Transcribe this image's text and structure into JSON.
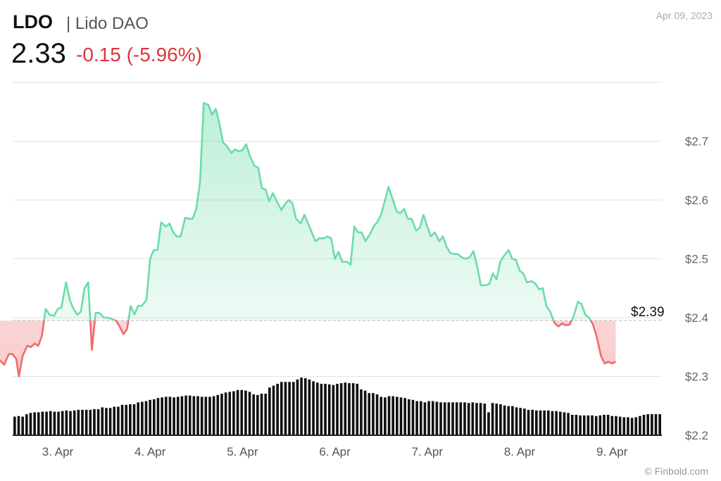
{
  "header": {
    "ticker": "LDO",
    "name": "| Lido DAO",
    "price": "2.33",
    "change": "-0.15 (-5.96%)",
    "date": "Apr 09, 2023"
  },
  "credit": "© Finbold.com",
  "colors": {
    "up": "#6ddba8",
    "down": "#ee6b6b",
    "volume": "#111111",
    "grid": "#e2e2e2"
  },
  "chart_data": {
    "type": "area",
    "title": "",
    "xlabel": "",
    "ylabel": "",
    "ylim": [
      2.2,
      2.8
    ],
    "yticks": [
      {
        "value": 2.2,
        "label": "$2.2"
      },
      {
        "value": 2.3,
        "label": "$2.3"
      },
      {
        "value": 2.4,
        "label": "$2.4"
      },
      {
        "value": 2.5,
        "label": "$2.5"
      },
      {
        "value": 2.6,
        "label": "$2.6"
      },
      {
        "value": 2.7,
        "label": "$2.7"
      }
    ],
    "xticks": [
      {
        "t": 1.0,
        "label": "3. Apr"
      },
      {
        "t": 2.0,
        "label": "4. Apr"
      },
      {
        "t": 3.0,
        "label": "5. Apr"
      },
      {
        "t": 4.0,
        "label": "6. Apr"
      },
      {
        "t": 5.0,
        "label": "7. Apr"
      },
      {
        "t": 6.0,
        "label": "8. Apr"
      },
      {
        "t": 7.0,
        "label": "9. Apr"
      }
    ],
    "baseline": {
      "value": 2.395,
      "label": "$2.39"
    },
    "series": [
      {
        "values": [
          [
            0.0,
            2.395
          ],
          [
            0.03,
            2.385
          ],
          [
            0.08,
            2.415
          ],
          [
            0.12,
            2.395
          ],
          [
            0.16,
            2.405
          ],
          [
            0.2,
            2.39
          ],
          [
            0.25,
            2.385
          ],
          [
            0.29,
            2.36
          ],
          [
            0.33,
            2.325
          ],
          [
            0.37,
            2.328
          ],
          [
            0.42,
            2.32
          ],
          [
            0.47,
            2.338
          ],
          [
            0.51,
            2.338
          ],
          [
            0.55,
            2.33
          ],
          [
            0.58,
            2.3
          ],
          [
            0.62,
            2.335
          ],
          [
            0.67,
            2.352
          ],
          [
            0.71,
            2.35
          ],
          [
            0.75,
            2.356
          ],
          [
            0.79,
            2.352
          ],
          [
            0.83,
            2.37
          ],
          [
            0.87,
            2.415
          ],
          [
            0.91,
            2.405
          ],
          [
            0.96,
            2.403
          ],
          [
            1.0,
            2.415
          ],
          [
            1.04,
            2.417
          ],
          [
            1.09,
            2.46
          ],
          [
            1.13,
            2.43
          ],
          [
            1.17,
            2.415
          ],
          [
            1.21,
            2.405
          ],
          [
            1.25,
            2.41
          ],
          [
            1.29,
            2.45
          ],
          [
            1.33,
            2.46
          ],
          [
            1.37,
            2.345
          ],
          [
            1.41,
            2.408
          ],
          [
            1.45,
            2.408
          ],
          [
            1.5,
            2.4
          ],
          [
            1.54,
            2.4
          ],
          [
            1.58,
            2.398
          ],
          [
            1.63,
            2.395
          ],
          [
            1.67,
            2.385
          ],
          [
            1.71,
            2.372
          ],
          [
            1.75,
            2.38
          ],
          [
            1.79,
            2.42
          ],
          [
            1.83,
            2.405
          ],
          [
            1.87,
            2.42
          ],
          [
            1.91,
            2.42
          ],
          [
            1.96,
            2.43
          ],
          [
            2.0,
            2.5
          ],
          [
            2.04,
            2.515
          ],
          [
            2.08,
            2.515
          ],
          [
            2.12,
            2.562
          ],
          [
            2.17,
            2.555
          ],
          [
            2.21,
            2.56
          ],
          [
            2.25,
            2.545
          ],
          [
            2.29,
            2.538
          ],
          [
            2.33,
            2.538
          ],
          [
            2.38,
            2.57
          ],
          [
            2.42,
            2.568
          ],
          [
            2.46,
            2.568
          ],
          [
            2.5,
            2.585
          ],
          [
            2.54,
            2.63
          ],
          [
            2.58,
            2.765
          ],
          [
            2.63,
            2.762
          ],
          [
            2.67,
            2.745
          ],
          [
            2.71,
            2.755
          ],
          [
            2.75,
            2.73
          ],
          [
            2.79,
            2.698
          ],
          [
            2.83,
            2.692
          ],
          [
            2.88,
            2.68
          ],
          [
            2.92,
            2.686
          ],
          [
            2.96,
            2.683
          ],
          [
            3.0,
            2.685
          ],
          [
            3.04,
            2.695
          ],
          [
            3.08,
            2.675
          ],
          [
            3.13,
            2.658
          ],
          [
            3.17,
            2.655
          ],
          [
            3.21,
            2.62
          ],
          [
            3.25,
            2.618
          ],
          [
            3.29,
            2.598
          ],
          [
            3.33,
            2.612
          ],
          [
            3.38,
            2.595
          ],
          [
            3.42,
            2.583
          ],
          [
            3.46,
            2.593
          ],
          [
            3.5,
            2.6
          ],
          [
            3.54,
            2.595
          ],
          [
            3.58,
            2.568
          ],
          [
            3.63,
            2.56
          ],
          [
            3.67,
            2.575
          ],
          [
            3.71,
            2.56
          ],
          [
            3.75,
            2.545
          ],
          [
            3.79,
            2.53
          ],
          [
            3.83,
            2.535
          ],
          [
            3.88,
            2.535
          ],
          [
            3.92,
            2.538
          ],
          [
            3.96,
            2.535
          ],
          [
            4.0,
            2.5
          ],
          [
            4.04,
            2.512
          ],
          [
            4.08,
            2.495
          ],
          [
            4.13,
            2.495
          ],
          [
            4.17,
            2.49
          ],
          [
            4.21,
            2.555
          ],
          [
            4.25,
            2.545
          ],
          [
            4.29,
            2.545
          ],
          [
            4.33,
            2.53
          ],
          [
            4.38,
            2.542
          ],
          [
            4.42,
            2.555
          ],
          [
            4.46,
            2.563
          ],
          [
            4.5,
            2.575
          ],
          [
            4.54,
            2.598
          ],
          [
            4.58,
            2.622
          ],
          [
            4.63,
            2.6
          ],
          [
            4.67,
            2.58
          ],
          [
            4.71,
            2.578
          ],
          [
            4.75,
            2.585
          ],
          [
            4.79,
            2.568
          ],
          [
            4.83,
            2.568
          ],
          [
            4.88,
            2.548
          ],
          [
            4.92,
            2.553
          ],
          [
            4.96,
            2.575
          ],
          [
            5.0,
            2.555
          ],
          [
            5.04,
            2.538
          ],
          [
            5.08,
            2.545
          ],
          [
            5.13,
            2.53
          ],
          [
            5.17,
            2.538
          ],
          [
            5.21,
            2.52
          ],
          [
            5.25,
            2.51
          ],
          [
            5.29,
            2.508
          ],
          [
            5.33,
            2.508
          ],
          [
            5.38,
            2.502
          ],
          [
            5.42,
            2.5
          ],
          [
            5.46,
            2.503
          ],
          [
            5.5,
            2.513
          ],
          [
            5.54,
            2.488
          ],
          [
            5.58,
            2.455
          ],
          [
            5.63,
            2.455
          ],
          [
            5.67,
            2.457
          ],
          [
            5.71,
            2.475
          ],
          [
            5.75,
            2.465
          ],
          [
            5.79,
            2.495
          ],
          [
            5.83,
            2.505
          ],
          [
            5.88,
            2.515
          ],
          [
            5.92,
            2.5
          ],
          [
            5.96,
            2.498
          ],
          [
            6.0,
            2.48
          ],
          [
            6.04,
            2.475
          ],
          [
            6.08,
            2.46
          ],
          [
            6.13,
            2.462
          ],
          [
            6.17,
            2.458
          ],
          [
            6.21,
            2.448
          ],
          [
            6.25,
            2.45
          ],
          [
            6.29,
            2.42
          ],
          [
            6.33,
            2.41
          ],
          [
            6.38,
            2.39
          ],
          [
            6.42,
            2.385
          ],
          [
            6.46,
            2.39
          ],
          [
            6.5,
            2.387
          ],
          [
            6.54,
            2.388
          ],
          [
            6.58,
            2.4
          ],
          [
            6.63,
            2.427
          ],
          [
            6.67,
            2.423
          ],
          [
            6.71,
            2.405
          ],
          [
            6.75,
            2.4
          ],
          [
            6.79,
            2.39
          ],
          [
            6.83,
            2.37
          ],
          [
            6.88,
            2.335
          ],
          [
            6.92,
            2.322
          ],
          [
            6.96,
            2.325
          ],
          [
            7.0,
            2.322
          ],
          [
            7.04,
            2.325
          ]
        ]
      }
    ],
    "volume_scale": [
      0,
      1
    ],
    "volume": [
      0.3,
      0.31,
      0.3,
      0.34,
      0.36,
      0.37,
      0.37,
      0.38,
      0.38,
      0.39,
      0.38,
      0.38,
      0.39,
      0.4,
      0.39,
      0.4,
      0.41,
      0.41,
      0.41,
      0.41,
      0.42,
      0.42,
      0.45,
      0.44,
      0.44,
      0.46,
      0.46,
      0.49,
      0.49,
      0.5,
      0.5,
      0.53,
      0.54,
      0.55,
      0.57,
      0.58,
      0.6,
      0.61,
      0.62,
      0.62,
      0.61,
      0.62,
      0.63,
      0.64,
      0.64,
      0.63,
      0.63,
      0.62,
      0.62,
      0.62,
      0.63,
      0.65,
      0.67,
      0.69,
      0.7,
      0.71,
      0.73,
      0.73,
      0.72,
      0.7,
      0.66,
      0.65,
      0.67,
      0.67,
      0.77,
      0.8,
      0.83,
      0.86,
      0.86,
      0.86,
      0.86,
      0.9,
      0.93,
      0.92,
      0.9,
      0.87,
      0.85,
      0.83,
      0.83,
      0.82,
      0.81,
      0.83,
      0.84,
      0.85,
      0.84,
      0.84,
      0.83,
      0.74,
      0.72,
      0.68,
      0.68,
      0.66,
      0.62,
      0.61,
      0.63,
      0.63,
      0.62,
      0.61,
      0.6,
      0.58,
      0.57,
      0.55,
      0.55,
      0.53,
      0.55,
      0.55,
      0.54,
      0.53,
      0.53,
      0.53,
      0.53,
      0.53,
      0.53,
      0.53,
      0.52,
      0.53,
      0.52,
      0.52,
      0.51,
      0.37,
      0.52,
      0.51,
      0.5,
      0.48,
      0.47,
      0.47,
      0.45,
      0.44,
      0.43,
      0.41,
      0.41,
      0.4,
      0.4,
      0.4,
      0.4,
      0.39,
      0.39,
      0.38,
      0.37,
      0.36,
      0.33,
      0.33,
      0.32,
      0.32,
      0.32,
      0.32,
      0.31,
      0.32,
      0.33,
      0.33,
      0.31,
      0.31,
      0.3,
      0.29,
      0.29,
      0.28,
      0.29,
      0.31,
      0.33,
      0.34,
      0.34,
      0.34,
      0.34
    ]
  }
}
